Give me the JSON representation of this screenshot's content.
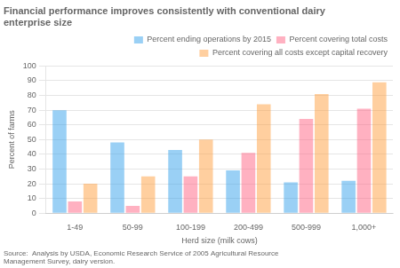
{
  "chart_data": {
    "type": "bar",
    "title": "Financial performance improves consistently with conventional dairy\nenterprise size",
    "xlabel": "Herd size (milk cows)",
    "ylabel": "Percent of farms",
    "annotations": [
      "Source:  Analysis by USDA, Economic Research Service of 2005 Agricultural Resource\nManagement Survey, dairy version."
    ],
    "categories": [
      "1-49",
      "50-99",
      "100-199",
      "200-499",
      "500-999",
      "1,000+"
    ],
    "series": [
      {
        "name": "Percent ending operations by 2015",
        "values": [
          70,
          48,
          43,
          29,
          21,
          22
        ]
      },
      {
        "name": "Percent covering total costs",
        "values": [
          8,
          5,
          25,
          41,
          64,
          71
        ]
      },
      {
        "name": "Percent covering all costs except\ncapital recovery",
        "values": [
          20,
          25,
          50,
          74,
          81,
          89
        ]
      }
    ],
    "ylim": [
      0,
      100
    ],
    "yticks": [
      0,
      10,
      20,
      30,
      40,
      50,
      60,
      70,
      80,
      90,
      100
    ],
    "grid": true,
    "legend": "upper right"
  }
}
